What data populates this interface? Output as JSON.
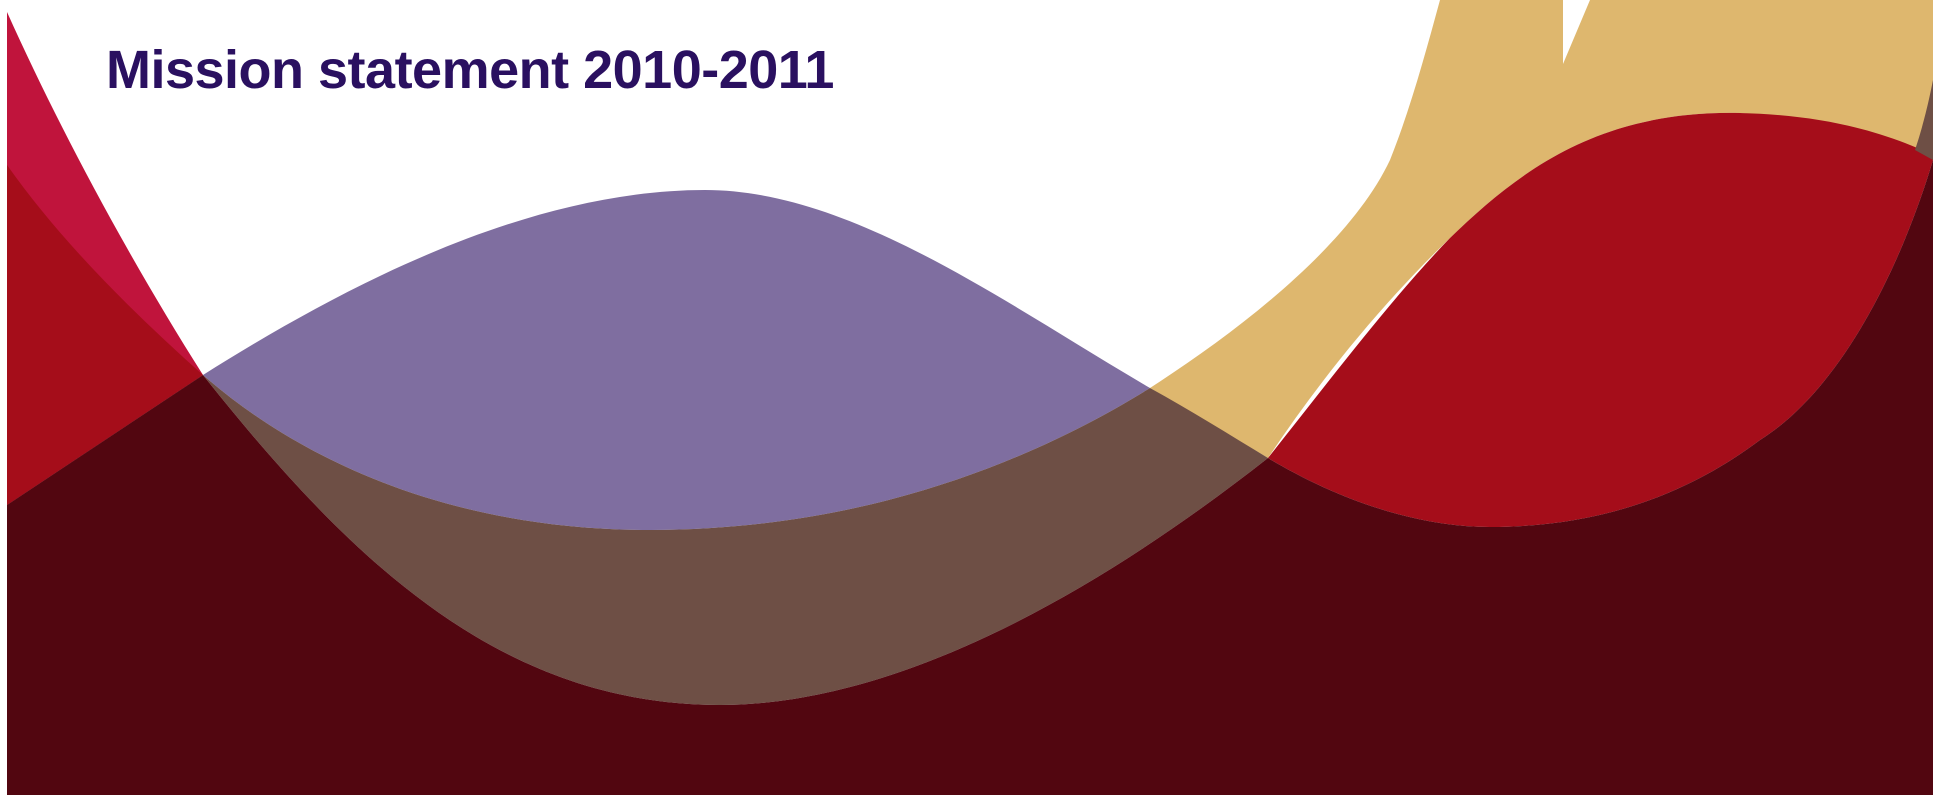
{
  "header": {
    "title": "Mission statement 2010-2011"
  },
  "colors": {
    "title": "#2a1060",
    "background": "#ffffff",
    "crimson": "#c0143c",
    "red": "#a50d1a",
    "gold": "#deb76e",
    "purple": "#7f6ea0",
    "brown": "#6e4f45",
    "maroon": "#520610"
  }
}
